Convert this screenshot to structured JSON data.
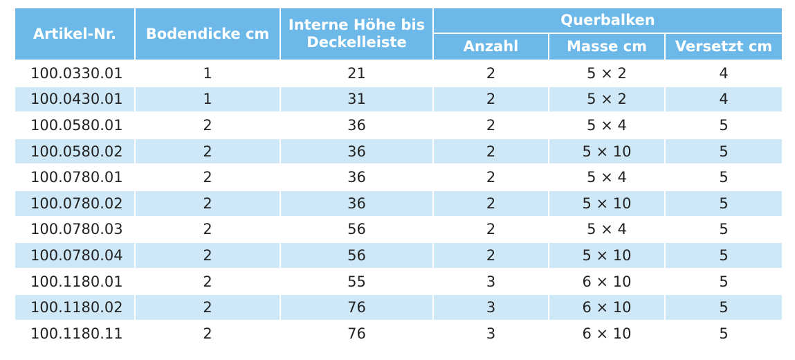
{
  "table": {
    "headers": {
      "artikel": "Artikel-Nr.",
      "bodendicke": "Bodendicke cm",
      "hoehe": "Interne Höhe bis Deckelleiste",
      "querbalken": "Querbalken",
      "anzahl": "Anzahl",
      "masse": "Masse cm",
      "versetzt": "Versetzt cm"
    },
    "rows": [
      {
        "artikel": "100.0330.01",
        "bodendicke": "1",
        "hoehe": "21",
        "anzahl": "2",
        "masse": "5 × 2",
        "versetzt": "4"
      },
      {
        "artikel": "100.0430.01",
        "bodendicke": "1",
        "hoehe": "31",
        "anzahl": "2",
        "masse": "5 × 2",
        "versetzt": "4"
      },
      {
        "artikel": "100.0580.01",
        "bodendicke": "2",
        "hoehe": "36",
        "anzahl": "2",
        "masse": "5 × 4",
        "versetzt": "5"
      },
      {
        "artikel": "100.0580.02",
        "bodendicke": "2",
        "hoehe": "36",
        "anzahl": "2",
        "masse": "5 × 10",
        "versetzt": "5"
      },
      {
        "artikel": "100.0780.01",
        "bodendicke": "2",
        "hoehe": "36",
        "anzahl": "2",
        "masse": "5 × 4",
        "versetzt": "5"
      },
      {
        "artikel": "100.0780.02",
        "bodendicke": "2",
        "hoehe": "36",
        "anzahl": "2",
        "masse": "5 × 10",
        "versetzt": "5"
      },
      {
        "artikel": "100.0780.03",
        "bodendicke": "2",
        "hoehe": "56",
        "anzahl": "2",
        "masse": "5 × 4",
        "versetzt": "5"
      },
      {
        "artikel": "100.0780.04",
        "bodendicke": "2",
        "hoehe": "56",
        "anzahl": "2",
        "masse": "5 × 10",
        "versetzt": "5"
      },
      {
        "artikel": "100.1180.01",
        "bodendicke": "2",
        "hoehe": "55",
        "anzahl": "3",
        "masse": "6 × 10",
        "versetzt": "5"
      },
      {
        "artikel": "100.1180.02",
        "bodendicke": "2",
        "hoehe": "76",
        "anzahl": "3",
        "masse": "6 × 10",
        "versetzt": "5"
      },
      {
        "artikel": "100.1180.11",
        "bodendicke": "2",
        "hoehe": "76",
        "anzahl": "3",
        "masse": "6 × 10",
        "versetzt": "5"
      }
    ]
  },
  "colors": {
    "header_bg": "#6cb8e8",
    "stripe_bg": "#cfe8f7",
    "text": "#222222"
  }
}
